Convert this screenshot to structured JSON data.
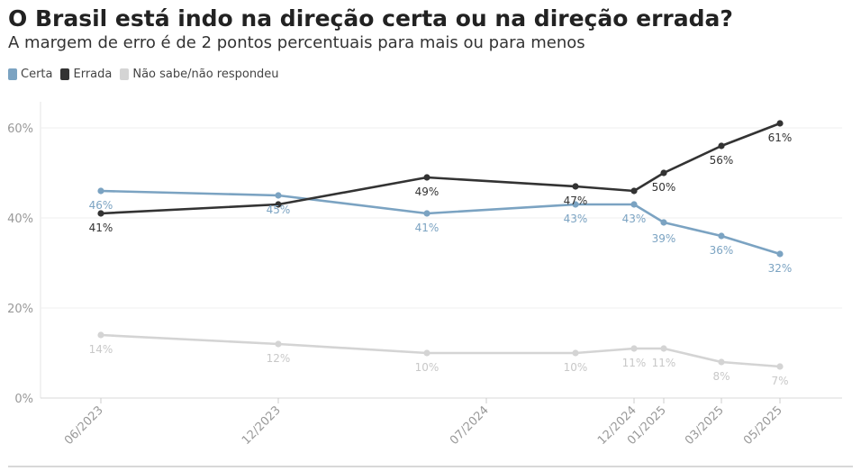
{
  "chart_data": {
    "type": "line",
    "title": "O Brasil está indo na direção certa ou na direção errada?",
    "subtitle": "A margem de erro é de 2 pontos percentuais para mais ou para menos",
    "ylim": [
      0,
      65
    ],
    "yticks": [
      0,
      20,
      40,
      60
    ],
    "ytick_labels": [
      "0%",
      "20%",
      "40%",
      "60%"
    ],
    "x": [
      "2023-06",
      "2023-12",
      "2024-04",
      "2024-07",
      "2024-08",
      "2024-12",
      "2025-01",
      "2025-03",
      "2025-05"
    ],
    "x_tick_labels": [
      {
        "x": "2023-06",
        "label": "06/2023"
      },
      {
        "x": "2023-12",
        "label": "12/2023"
      },
      {
        "x": "2024-07",
        "label": "07/2024"
      },
      {
        "x": "2024-12",
        "label": "12/2024"
      },
      {
        "x": "2025-01",
        "label": "01/2025"
      },
      {
        "x": "2025-03",
        "label": "03/2025"
      },
      {
        "x": "2025-05",
        "label": "05/2025"
      }
    ],
    "series": [
      {
        "name": "Certa",
        "color": "#7ba3c2",
        "values": [
          46,
          45,
          41,
          43,
          43,
          39,
          36,
          32
        ],
        "x": [
          "2023-06",
          "2023-12",
          "2024-04",
          "2024-08",
          "2024-12",
          "2025-01",
          "2025-03",
          "2025-05"
        ],
        "labels": [
          "46%",
          "45%",
          "41%",
          "43%",
          "43%",
          "39%",
          "36%",
          "32%"
        ]
      },
      {
        "name": "Errada",
        "color": "#333333",
        "values": [
          41,
          43,
          49,
          47,
          46,
          50,
          56,
          61
        ],
        "x": [
          "2023-06",
          "2023-12",
          "2024-04",
          "2024-08",
          "2024-12",
          "2025-01",
          "2025-03",
          "2025-05"
        ],
        "labels": [
          "41%",
          "",
          "49%",
          "47%",
          "",
          "50%",
          "56%",
          "61%"
        ]
      },
      {
        "name": "Não sabe/não respondeu",
        "color": "#d4d4d4",
        "values": [
          14,
          12,
          10,
          10,
          11,
          11,
          8,
          7
        ],
        "x": [
          "2023-06",
          "2023-12",
          "2024-04",
          "2024-08",
          "2024-12",
          "2025-01",
          "2025-03",
          "2025-05"
        ],
        "labels": [
          "14%",
          "12%",
          "10%",
          "10%",
          "11%",
          "11%",
          "8%",
          "7%"
        ]
      }
    ],
    "grid": true,
    "legend": "top-left"
  }
}
